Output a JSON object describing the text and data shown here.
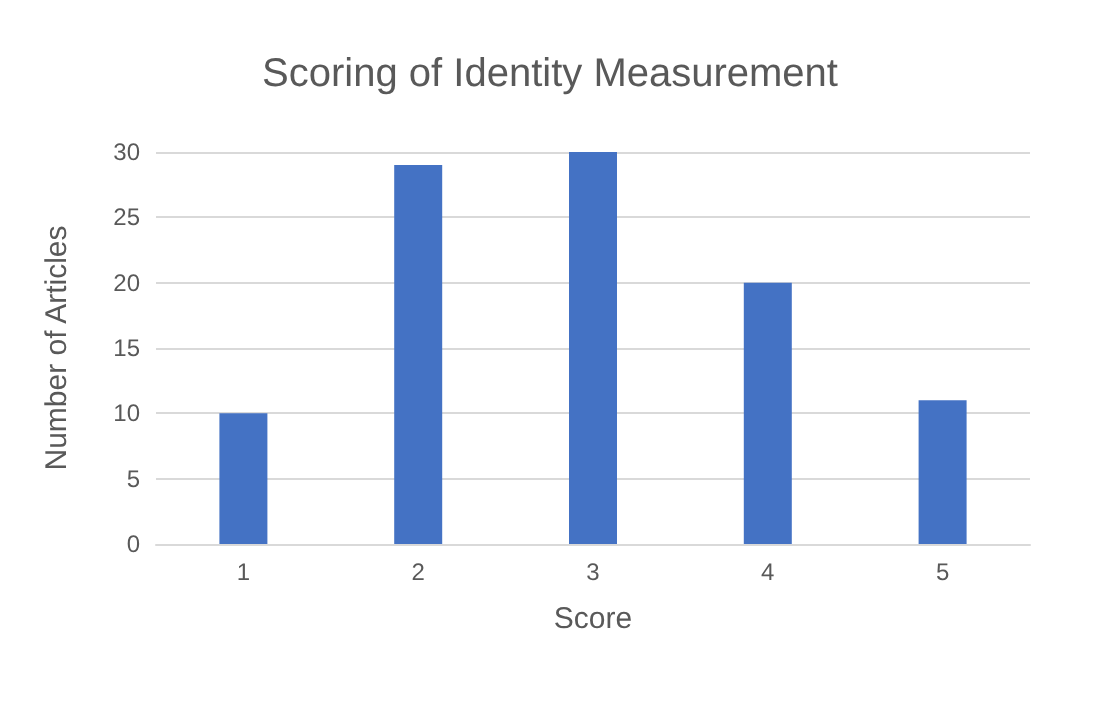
{
  "chart_data": {
    "type": "bar",
    "title": "Scoring of Identity Measurement",
    "xlabel": "Score",
    "ylabel": "Number of Articles",
    "categories": [
      "1",
      "2",
      "3",
      "4",
      "5"
    ],
    "values": [
      10,
      29,
      30,
      20,
      11
    ],
    "color": "#4472c4",
    "ylim": [
      0,
      30
    ],
    "yticks": [
      0,
      5,
      10,
      15,
      20,
      25,
      30
    ],
    "grid": "y"
  }
}
